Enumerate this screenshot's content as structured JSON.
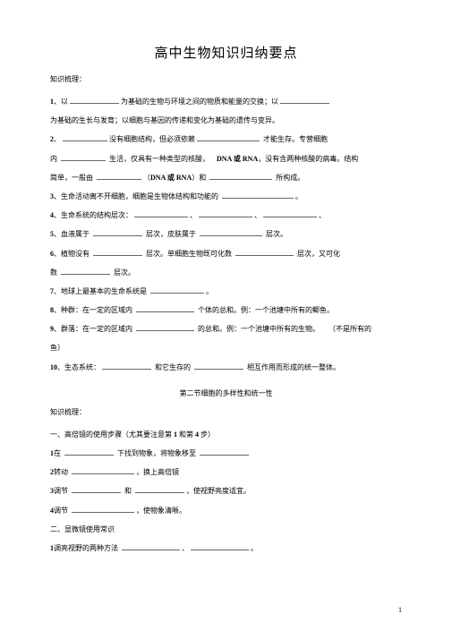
{
  "title": "高中生物知识归纳要点",
  "knowledge_label": "知识梳理：",
  "lines": {
    "l1a": "1",
    "l1b": "、以",
    "l1c": "为基础的生物与环境之间的物质和能量的交换；以",
    "l2a": "为基础的生长与发育；以细胞与基因的传递和变化为基础的遗传与变异。",
    "l3a": "2",
    "l3b": "、",
    "l3c": "没有细胞结构，但必须依赖",
    "l3d": " 才能生存。专营细胞",
    "l4a": "内 ",
    "l4b": " 生活，仅具有一种类型的核酸，",
    "l4c": "DNA 或 RNA",
    "l4d": "，没有含两种核酸的病毒。结构",
    "l5a": "简单，一般由 ",
    "l5b": "（",
    "l5c": "DNA 或 RNA",
    "l5d": "）和 ",
    "l5e": " 所构成。",
    "l6a": "3",
    "l6b": "、生命活动离不开细胞，细胞是生物体结构和功能的 ",
    "l6c": "。",
    "l7a": "4",
    "l7b": "、生命系统的结构层次：",
    "l7c": "、",
    "l7d": "、",
    "l8a": "5",
    "l8b": "、血液属于 ",
    "l8c": " 层次，皮肤属于 ",
    "l8d": " 层次。",
    "l9a": "6",
    "l9b": "、植物没有 ",
    "l9c": " 层次。单细胞生物既可化数 ",
    "l9d": " 层次，又可化",
    "l10a": "数 ",
    "l10b": " 层次。",
    "l11a": "7",
    "l11b": "、地球上最基本的生命系统是 ",
    "l11c": "。",
    "l12a": "8",
    "l12b": "、种群：在一定的区域内 ",
    "l12c": " 个体的总和。例：一个池塘中所有的鲫鱼。",
    "l13a": "9",
    "l13b": "、群落：在一定的区域内 ",
    "l13c": " 的总和。例：一个池塘中所有的生物。",
    "l13d": "（不是所有的",
    "l14a": "鱼）",
    "l15a": "10",
    "l15b": "、生态系统：",
    "l15c": " 和它生存的 ",
    "l15d": " 相互作用而形成的统一整体。",
    "subtitle": "第二节细胞的多样性和统一性",
    "s1": "知识梳理：",
    "s2a": "一、高倍镜的使用步骤（尤其要注意第",
    "s2b": " 1 ",
    "s2c": "和第",
    "s2d": " 4 ",
    "s2e": "步）",
    "s3a": "1",
    "s3b": "在 ",
    "s3c": " 下找到物象，将物象移至 ",
    "s4a": "2",
    "s4b": "转动 ",
    "s4c": "，换上高倍镜",
    "s5a": "3",
    "s5b": "调节 ",
    "s5c": " 和 ",
    "s5d": "，使视野亮度适宜。",
    "s6a": "4",
    "s6b": "调节 ",
    "s6c": "，使物象清晰。",
    "s7": "二、显微镜使用常识",
    "s8a": "1",
    "s8b": "调亮视野的两种方法 ",
    "s8c": "、",
    "s8d": "。"
  },
  "page_number": "1"
}
